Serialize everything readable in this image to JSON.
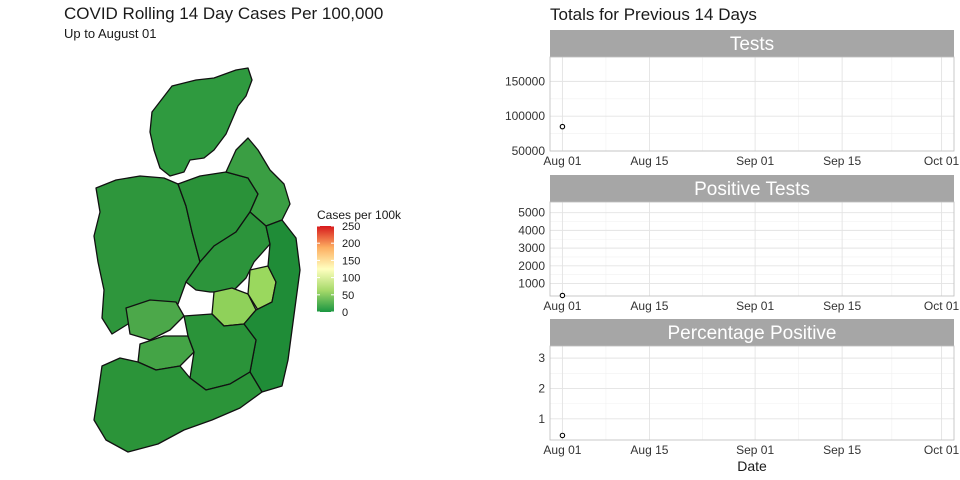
{
  "map": {
    "title": "COVID Rolling 14 Day Cases Per 100,000",
    "subtitle": "Up to August 01",
    "legend": {
      "title": "Cases per 100k",
      "ticks": [
        250,
        200,
        150,
        100,
        50,
        0
      ],
      "colors": [
        "#1a9641",
        "#a6d96a",
        "#ffffbf",
        "#fdae61",
        "#d7191c"
      ],
      "range": [
        0,
        250
      ]
    }
  },
  "chart_data": [
    {
      "type": "scatter",
      "title": "Totals for Previous 14 Days",
      "panels": [
        {
          "strip": "Tests",
          "ylim": [
            50000,
            185000
          ],
          "yticks": [
            50000,
            100000,
            150000
          ],
          "points": [
            {
              "x": "2020-08-01",
              "y": 85000
            }
          ]
        },
        {
          "strip": "Positive Tests",
          "ylim": [
            300,
            5600
          ],
          "yticks": [
            1000,
            2000,
            3000,
            4000,
            5000
          ],
          "points": [
            {
              "x": "2020-08-01",
              "y": 330
            }
          ]
        },
        {
          "strip": "Percentage Positive",
          "ylim": [
            0.3,
            3.4
          ],
          "yticks": [
            1,
            2,
            3
          ],
          "points": [
            {
              "x": "2020-08-01",
              "y": 0.45
            }
          ]
        }
      ],
      "x_ticks": [
        {
          "date": "2020-08-01",
          "label": "Aug 01"
        },
        {
          "date": "2020-08-15",
          "label": "Aug 15"
        },
        {
          "date": "2020-09-01",
          "label": "Sep 01"
        },
        {
          "date": "2020-09-15",
          "label": "Sep 15"
        },
        {
          "date": "2020-10-01",
          "label": "Oct 01"
        }
      ],
      "xlim": [
        "2020-07-30",
        "2020-10-03"
      ],
      "xlabel": "Date",
      "ylabel": "",
      "grid": true,
      "strip_color": "#a6a6a6"
    }
  ]
}
